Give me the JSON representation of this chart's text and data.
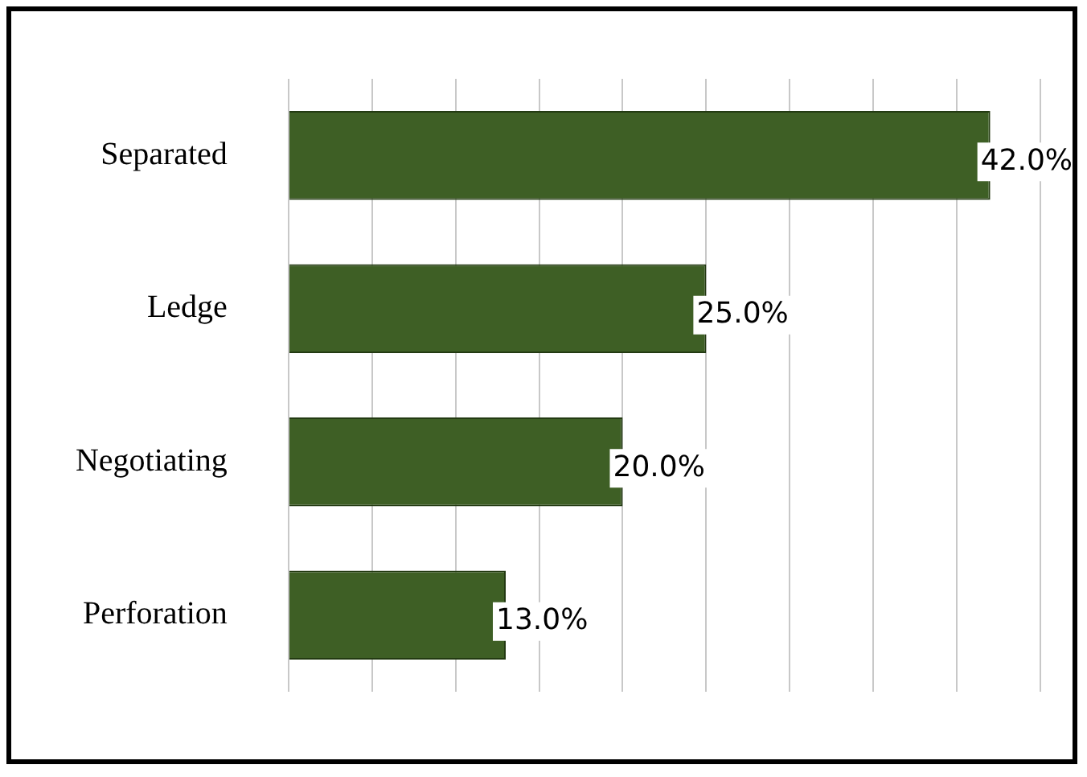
{
  "chart_data": {
    "type": "bar",
    "orientation": "horizontal",
    "categories": [
      "Separated",
      "Ledge",
      "Negotiating",
      "Perforation"
    ],
    "values": [
      42,
      25,
      20,
      13
    ],
    "color": "#3e5f25",
    "value_labels": [
      "42.0%",
      "25.0%",
      "20.0%",
      "13.0%"
    ],
    "grid": "x",
    "tick_labels": "y",
    "legend": false
  }
}
